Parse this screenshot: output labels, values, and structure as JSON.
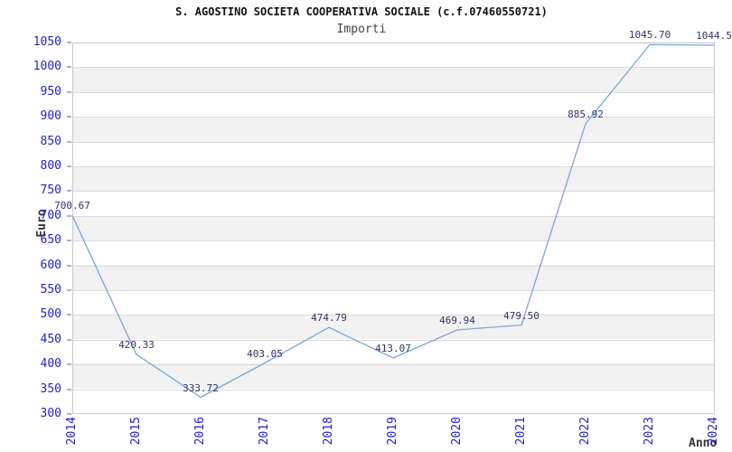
{
  "header": {
    "title": "S. AGOSTINO SOCIETA COOPERATIVA SOCIALE (c.f.07460550721)",
    "subtitle": "Importi"
  },
  "chart_data": {
    "type": "line",
    "title": "S. AGOSTINO SOCIETA COOPERATIVA SOCIALE (c.f.07460550721)",
    "subtitle": "Importi",
    "xlabel": "Anno",
    "ylabel": "Euro",
    "x": [
      2014,
      2015,
      2016,
      2017,
      2018,
      2019,
      2020,
      2021,
      2022,
      2023,
      2024
    ],
    "values": [
      700.67,
      420.33,
      333.72,
      403.05,
      474.79,
      413.07,
      469.94,
      479.5,
      885.92,
      1045.7,
      1044.5
    ],
    "point_labels": [
      "700.67",
      "420.33",
      "333.72",
      "403.05",
      "474.79",
      "413.07",
      "469.94",
      "479.50",
      "885.92",
      "1045.70",
      "1044.5"
    ],
    "ylim": [
      300,
      1050
    ],
    "ytick_step": 50,
    "legend": "none",
    "grid": "horizontal-alternating-bands",
    "colors": {
      "line": "#74a7dc",
      "tick_label": "#2222cc",
      "point_label": "#333366",
      "band": "#f2f2f2",
      "gridline": "#dadada",
      "plot_border": "#c8c8c8",
      "axis_tick": "#b2aad8",
      "title": "#111111",
      "subtitle": "#444444",
      "axis_title": "#333333"
    }
  }
}
